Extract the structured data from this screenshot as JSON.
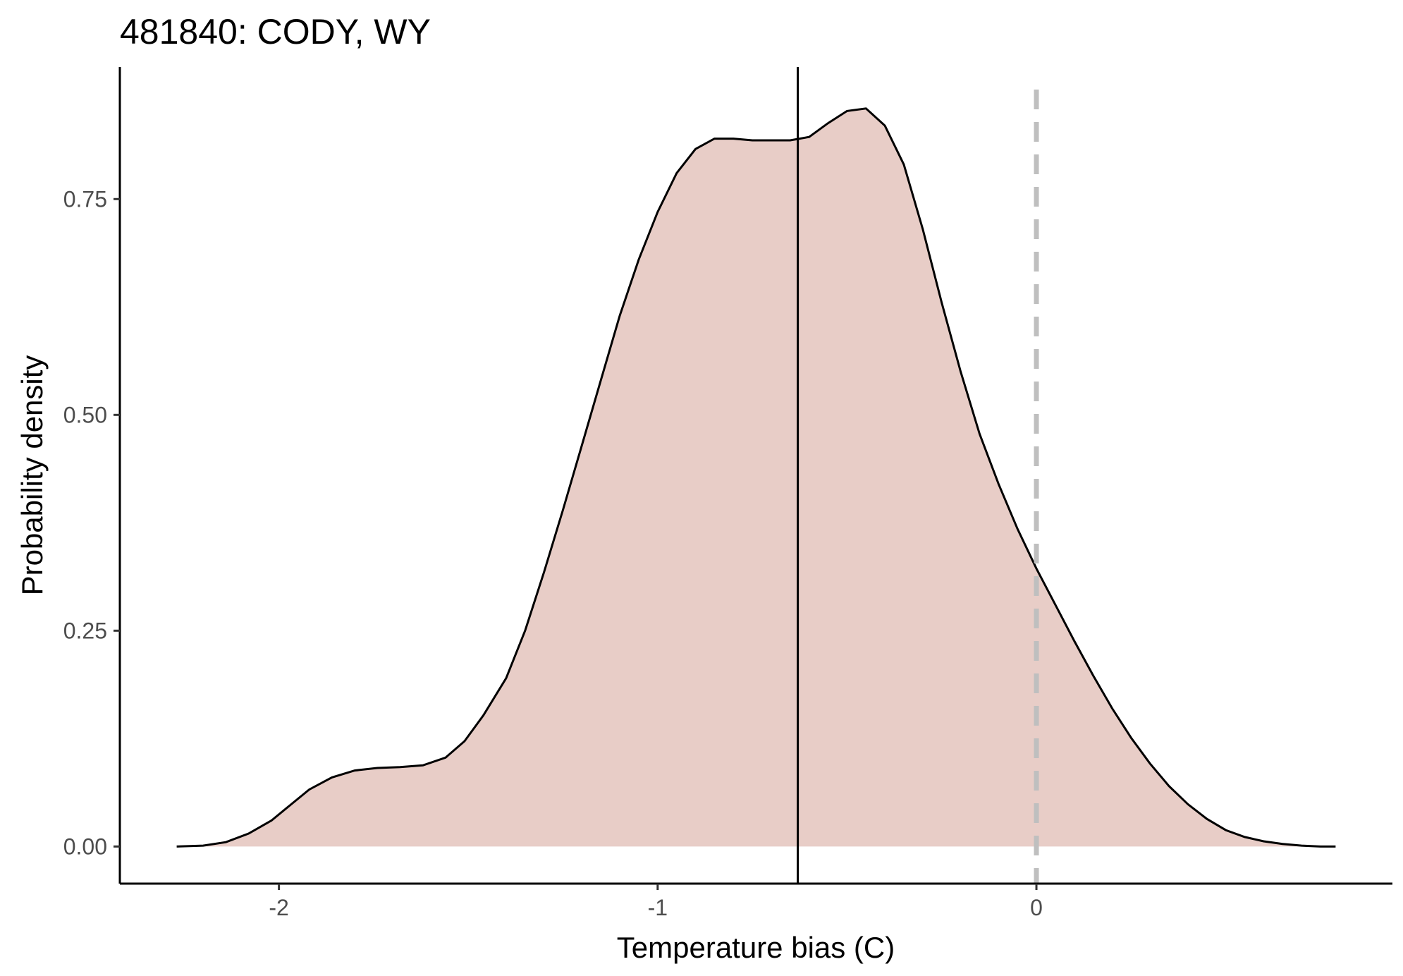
{
  "chart_data": {
    "type": "area",
    "title": "481840: CODY, WY",
    "xlabel": "Temperature bias (C)",
    "ylabel": "Probability density",
    "x_ticks": [
      -2,
      -1,
      0
    ],
    "y_ticks": [
      0.0,
      0.25,
      0.5,
      0.75
    ],
    "x_tick_labels": [
      "-2",
      "-1",
      "0"
    ],
    "y_tick_labels": [
      "0.00",
      "0.25",
      "0.50",
      "0.75"
    ],
    "xlim": [
      -2.42,
      0.94
    ],
    "ylim": [
      -0.043,
      0.903
    ],
    "grid": false,
    "legend": "none",
    "fill_color": "#e8cdc7",
    "line_color": "#000000",
    "mean_line_x": -0.63,
    "reference_line_x": 0.0,
    "reference_line_color": "#bfbfbf",
    "series": [
      {
        "x": [
          -2.27,
          -2.2,
          -2.14,
          -2.08,
          -2.02,
          -1.97,
          -1.92,
          -1.86,
          -1.8,
          -1.74,
          -1.68,
          -1.62,
          -1.56,
          -1.51,
          -1.46,
          -1.4,
          -1.35,
          -1.3,
          -1.25,
          -1.2,
          -1.15,
          -1.1,
          -1.05,
          -1.0,
          -0.95,
          -0.9,
          -0.85,
          -0.8,
          -0.75,
          -0.7,
          -0.65,
          -0.6,
          -0.55,
          -0.5,
          -0.45,
          -0.4,
          -0.35,
          -0.3,
          -0.25,
          -0.2,
          -0.15,
          -0.1,
          -0.05,
          0.0,
          0.05,
          0.1,
          0.15,
          0.2,
          0.25,
          0.3,
          0.35,
          0.4,
          0.45,
          0.5,
          0.55,
          0.6,
          0.65,
          0.7,
          0.75,
          0.79
        ],
        "y": [
          0.0,
          0.001,
          0.005,
          0.015,
          0.03,
          0.048,
          0.066,
          0.08,
          0.088,
          0.091,
          0.092,
          0.094,
          0.103,
          0.122,
          0.152,
          0.195,
          0.25,
          0.318,
          0.39,
          0.465,
          0.54,
          0.615,
          0.68,
          0.735,
          0.78,
          0.808,
          0.82,
          0.82,
          0.818,
          0.818,
          0.818,
          0.822,
          0.838,
          0.852,
          0.855,
          0.835,
          0.79,
          0.715,
          0.63,
          0.55,
          0.478,
          0.42,
          0.368,
          0.322,
          0.28,
          0.238,
          0.198,
          0.16,
          0.126,
          0.096,
          0.07,
          0.049,
          0.032,
          0.019,
          0.011,
          0.006,
          0.003,
          0.001,
          0.0,
          0.0
        ]
      }
    ]
  }
}
